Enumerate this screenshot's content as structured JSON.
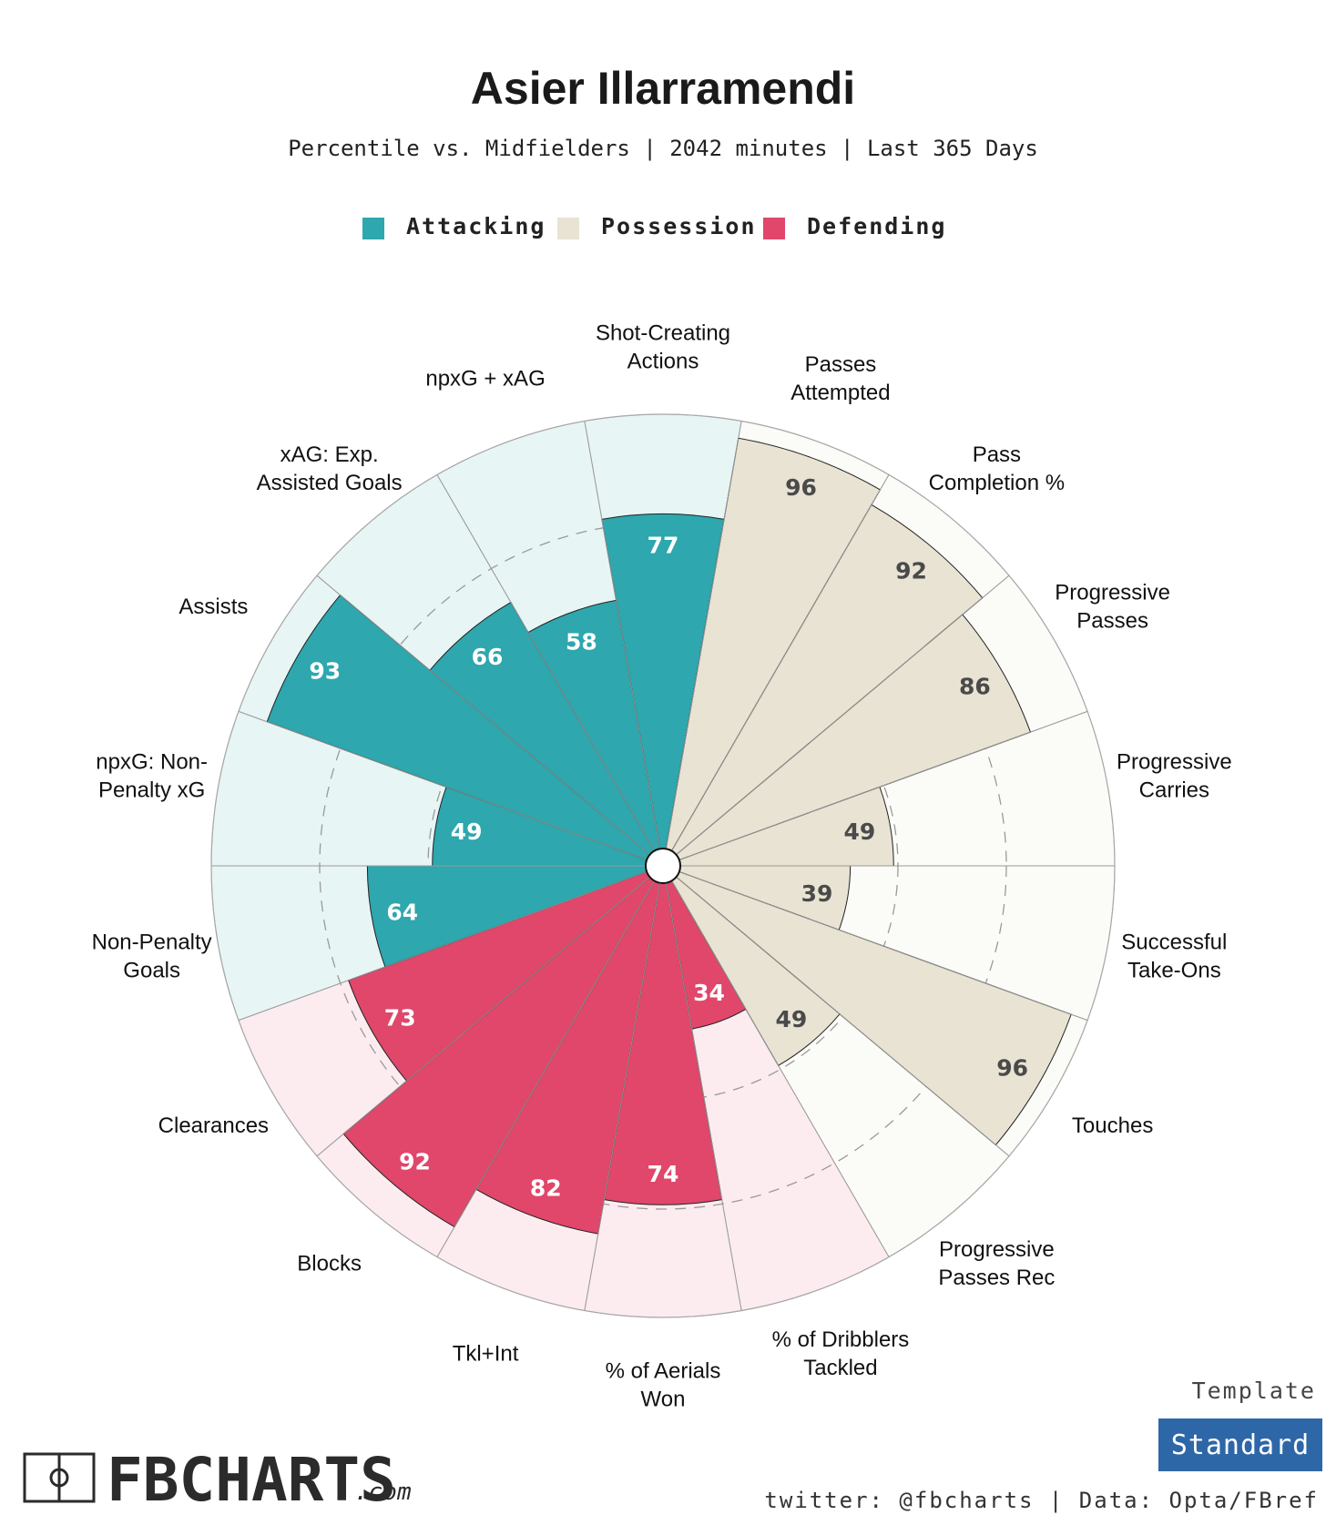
{
  "colors": {
    "attacking": "#2ea7ae",
    "attacking_bg": "#e8f5f5",
    "possession": "#e8e3d3",
    "possession_bg": "#fbfbf8",
    "defending": "#e0476a",
    "defending_bg": "#fcecf0",
    "template_button": "#2e67a7"
  },
  "legend": {
    "attacking": "Attacking",
    "possession": "Possession",
    "defending": "Defending"
  },
  "chart_data": {
    "type": "polar-bar",
    "title": "Asier Illarramendi",
    "subtitle": "Percentile vs. Midfielders | 2042 minutes | Last 365 Days",
    "range": [
      0,
      100
    ],
    "gridlines": [
      25,
      50,
      75
    ],
    "categories": [
      {
        "label": "Shot-Creating Actions",
        "lines": [
          "Shot-Creating",
          "Actions"
        ],
        "value": 77,
        "group": "attacking"
      },
      {
        "label": "Passes Attempted",
        "lines": [
          "Passes",
          "Attempted"
        ],
        "value": 96,
        "group": "possession"
      },
      {
        "label": "Pass Completion %",
        "lines": [
          "Pass",
          "Completion %"
        ],
        "value": 92,
        "group": "possession"
      },
      {
        "label": "Progressive Passes",
        "lines": [
          "Progressive",
          "Passes"
        ],
        "value": 86,
        "group": "possession"
      },
      {
        "label": "Progressive Carries",
        "lines": [
          "Progressive",
          "Carries"
        ],
        "value": 49,
        "group": "possession"
      },
      {
        "label": "Successful Take-Ons",
        "lines": [
          "Successful",
          "Take-Ons"
        ],
        "value": 39,
        "group": "possession"
      },
      {
        "label": "Touches",
        "lines": [
          "Touches"
        ],
        "value": 96,
        "group": "possession"
      },
      {
        "label": "Progressive Passes Rec",
        "lines": [
          "Progressive",
          "Passes Rec"
        ],
        "value": 49,
        "group": "possession"
      },
      {
        "label": "% of Dribblers Tackled",
        "lines": [
          "% of Dribblers",
          "Tackled"
        ],
        "value": 34,
        "group": "defending"
      },
      {
        "label": "% of Aerials Won",
        "lines": [
          "% of Aerials",
          "Won"
        ],
        "value": 74,
        "group": "defending"
      },
      {
        "label": "Tkl+Int",
        "lines": [
          "Tkl+Int"
        ],
        "value": 82,
        "group": "defending"
      },
      {
        "label": "Blocks",
        "lines": [
          "Blocks"
        ],
        "value": 92,
        "group": "defending"
      },
      {
        "label": "Clearances",
        "lines": [
          "Clearances"
        ],
        "value": 73,
        "group": "defending"
      },
      {
        "label": "Non-Penalty Goals",
        "lines": [
          "Non-Penalty",
          "Goals"
        ],
        "value": 64,
        "group": "attacking"
      },
      {
        "label": "npxG: Non-Penalty xG",
        "lines": [
          "npxG: Non-",
          "Penalty xG"
        ],
        "value": 49,
        "group": "attacking"
      },
      {
        "label": "Assists",
        "lines": [
          "Assists"
        ],
        "value": 93,
        "group": "attacking"
      },
      {
        "label": "xAG: Exp. Assisted Goals",
        "lines": [
          "xAG: Exp.",
          "Assisted Goals"
        ],
        "value": 66,
        "group": "attacking"
      },
      {
        "label": "npxG + xAG",
        "lines": [
          "npxG + xAG"
        ],
        "value": 58,
        "group": "attacking"
      }
    ]
  },
  "footer": {
    "logo_main": "FBCHARTS",
    "logo_suffix": ".com",
    "template_label": "Template",
    "template_value": "Standard",
    "credit": "twitter: @fbcharts | Data: Opta/FBref"
  }
}
